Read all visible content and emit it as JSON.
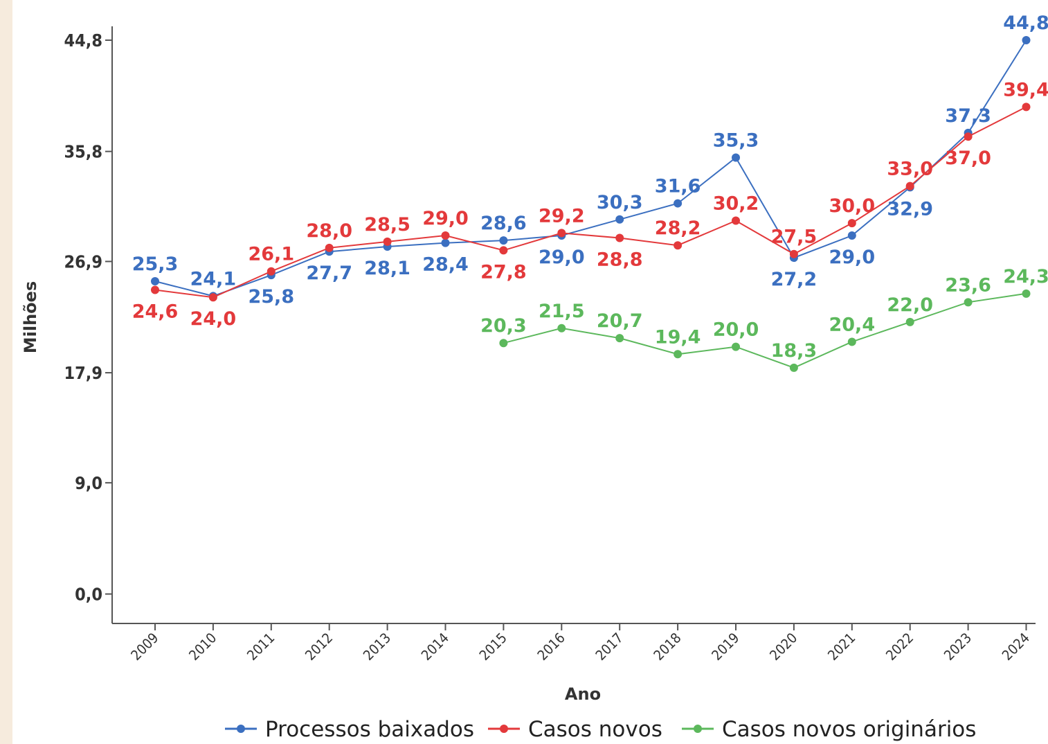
{
  "chart_data": {
    "type": "line",
    "xlabel": "Ano",
    "ylabel": "Milhões",
    "ylim": [
      0,
      44.8
    ],
    "yticks": [
      0.0,
      9.0,
      17.9,
      26.9,
      35.8,
      44.8
    ],
    "ytick_labels": [
      "0,0",
      "9,0",
      "17,9",
      "26,9",
      "35,8",
      "44,8"
    ],
    "x": [
      "2009",
      "2010",
      "2011",
      "2012",
      "2013",
      "2014",
      "2015",
      "2016",
      "2017",
      "2018",
      "2019",
      "2020",
      "2021",
      "2022",
      "2023",
      "2024"
    ],
    "legend_position": "bottom",
    "grid": false,
    "series": [
      {
        "name": "Processos baixados",
        "color": "#3b6fc0",
        "values": [
          25.3,
          24.1,
          25.8,
          27.7,
          28.1,
          28.4,
          28.6,
          29.0,
          30.3,
          31.6,
          35.3,
          27.2,
          29.0,
          32.9,
          37.3,
          44.8
        ],
        "labels": [
          "25,3",
          "24,1",
          "25,8",
          "27,7",
          "28,1",
          "28,4",
          "28,6",
          "29,0",
          "30,3",
          "31,6",
          "35,3",
          "27,2",
          "29,0",
          "32,9",
          "37,3",
          "44,8"
        ]
      },
      {
        "name": "Casos novos",
        "color": "#e3393b",
        "values": [
          24.6,
          24.0,
          26.1,
          28.0,
          28.5,
          29.0,
          27.8,
          29.2,
          28.8,
          28.2,
          30.2,
          27.5,
          30.0,
          33.0,
          37.0,
          39.4
        ],
        "labels": [
          "24,6",
          "24,0",
          "26,1",
          "28,0",
          "28,5",
          "29,0",
          "27,8",
          "29,2",
          "28,8",
          "28,2",
          "30,2",
          "27,5",
          "30,0",
          "33,0",
          "37,0",
          "39,4"
        ]
      },
      {
        "name": "Casos novos originários",
        "color": "#5cb85c",
        "values": [
          null,
          null,
          null,
          null,
          null,
          null,
          20.3,
          21.5,
          20.7,
          19.4,
          20.0,
          18.3,
          20.4,
          22.0,
          23.6,
          24.3
        ],
        "labels": [
          null,
          null,
          null,
          null,
          null,
          null,
          "20,3",
          "21,5",
          "20,7",
          "19,4",
          "20,0",
          "18,3",
          "20,4",
          "22,0",
          "23,6",
          "24,3"
        ]
      }
    ]
  }
}
